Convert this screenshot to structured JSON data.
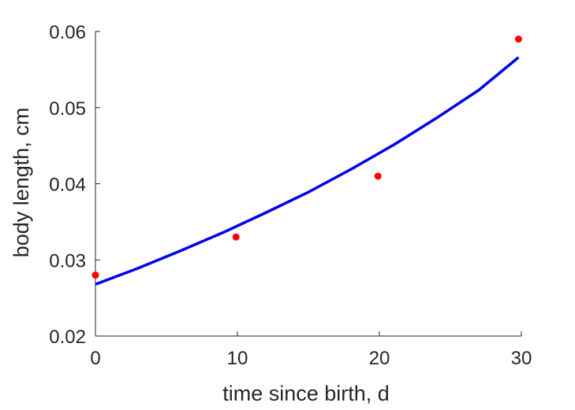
{
  "chart_data": {
    "type": "scatter",
    "xlabel": "time since birth, d",
    "ylabel": "body length, cm",
    "xlim": [
      0,
      30
    ],
    "ylim": [
      0.02,
      0.06
    ],
    "x_ticks": [
      0,
      10,
      20,
      30
    ],
    "x_tick_labels": [
      "0",
      "10",
      "20",
      "30"
    ],
    "y_ticks": [
      0.02,
      0.03,
      0.04,
      0.05,
      0.06
    ],
    "y_tick_labels": [
      "0.02",
      "0.03",
      "0.04",
      "0.05",
      "0.06"
    ],
    "grid": false,
    "series": [
      {
        "kind": "points",
        "color": "#ff0000",
        "x": [
          0,
          9.9,
          19.9,
          29.8
        ],
        "y": [
          0.028,
          0.033,
          0.041,
          0.059
        ]
      },
      {
        "kind": "line",
        "color": "#0000ee",
        "x": [
          0,
          3,
          6,
          9,
          12,
          15,
          18,
          21,
          24,
          27,
          29.8
        ],
        "y": [
          0.0268,
          0.0289,
          0.0312,
          0.0336,
          0.0362,
          0.0389,
          0.0419,
          0.0451,
          0.0486,
          0.0523,
          0.0566
        ]
      }
    ]
  }
}
